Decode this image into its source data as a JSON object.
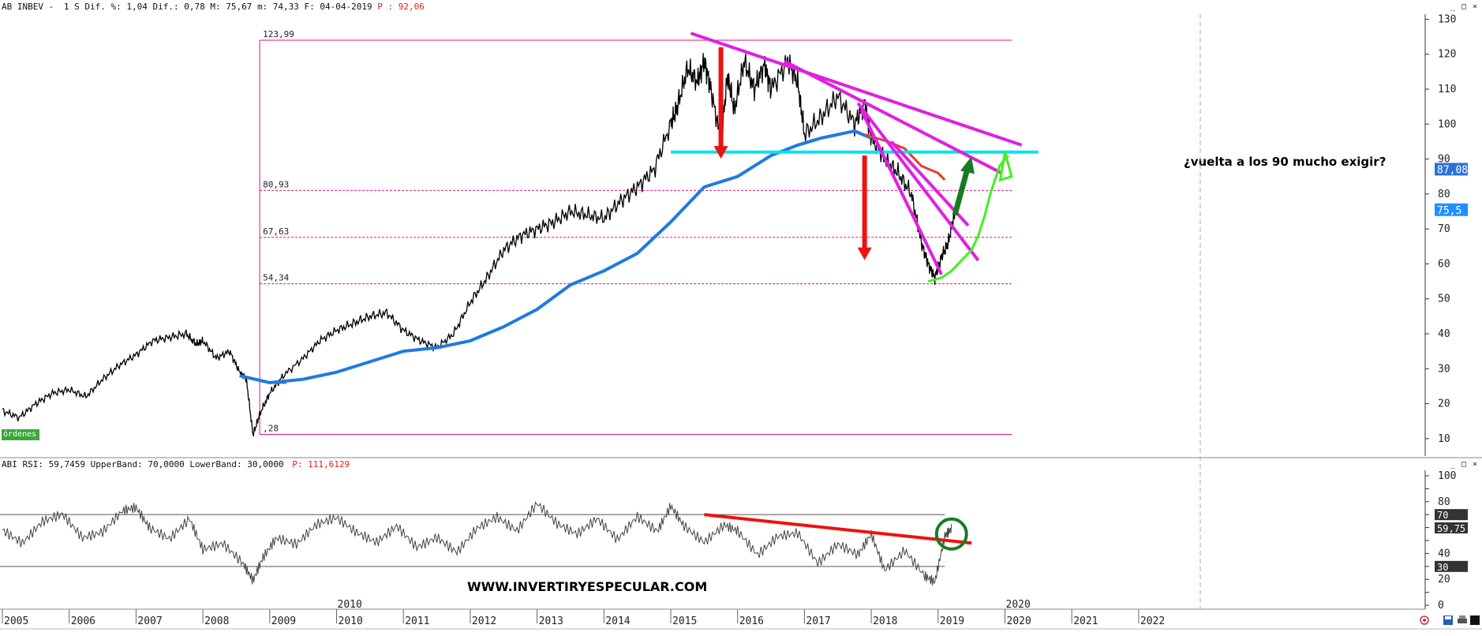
{
  "header": {
    "name": "AB INBEV -",
    "period": "1 S",
    "dif_pct": "Dif. %: 1,04",
    "dif": "Dif.: 0,78",
    "max": "M: 75,67",
    "min": "m: 74,33",
    "date": "F: 04-04-2019",
    "p_label": "P : 92,06"
  },
  "rsi_header": {
    "text": "ABI RSI: 59,7459 UpperBand: 70,0000 LowerBand: 30,0000",
    "p_label": "P: 111,6129"
  },
  "ordenes_label": "órdenes",
  "watermark": "WWW.INVERTIRYESPECULAR.COM",
  "annotation": "¿vuelta a los 90 mucho exigir?",
  "colors": {
    "price": "#000000",
    "ma_blue": "#1e7be0",
    "ma_red": "#e04030",
    "fib": "#e0157a",
    "trendline": "#e020e0",
    "support": "#00e5f0",
    "arrow_red": "#ee1111",
    "arrow_green": "#1a7a22",
    "projection": "#44ee22",
    "rsi": "#444444"
  },
  "chart_data": [
    {
      "type": "line",
      "title": "AB INBEV",
      "x_axis_labels": [
        "2005",
        "2006",
        "2007",
        "2008",
        "2009",
        "2010",
        "2011",
        "2012",
        "2013",
        "2014",
        "2015",
        "2016",
        "2017",
        "2018",
        "2019",
        "2020",
        "2021",
        "2022"
      ],
      "y_ticks": [
        10,
        20,
        30,
        40,
        50,
        60,
        70,
        80,
        90,
        100,
        110,
        120,
        130
      ],
      "ylim": [
        5,
        131
      ],
      "price_series": {
        "name": "AB INBEV",
        "x": [
          2005.0,
          2005.25,
          2005.5,
          2005.75,
          2006.0,
          2006.25,
          2006.5,
          2006.75,
          2007.0,
          2007.25,
          2007.5,
          2007.75,
          2007.9,
          2008.0,
          2008.2,
          2008.4,
          2008.55,
          2008.65,
          2008.75,
          2008.85,
          2009.0,
          2009.2,
          2009.5,
          2009.75,
          2010.0,
          2010.25,
          2010.5,
          2010.75,
          2011.0,
          2011.25,
          2011.5,
          2011.75,
          2012.0,
          2012.25,
          2012.5,
          2012.75,
          2013.0,
          2013.25,
          2013.5,
          2013.75,
          2014.0,
          2014.25,
          2014.5,
          2014.75,
          2015.0,
          2015.1,
          2015.25,
          2015.4,
          2015.5,
          2015.6,
          2015.75,
          2015.85,
          2015.95,
          2016.1,
          2016.25,
          2016.4,
          2016.5,
          2016.75,
          2016.9,
          2017.0,
          2017.25,
          2017.5,
          2017.75,
          2017.9,
          2018.0,
          2018.2,
          2018.4,
          2018.6,
          2018.75,
          2018.85,
          2018.95,
          2019.05,
          2019.15,
          2019.25
        ],
        "y": [
          18,
          16,
          20,
          23,
          24,
          22,
          27,
          31,
          34,
          38,
          39,
          40,
          37,
          38,
          33,
          35,
          29,
          27,
          11,
          17,
          23,
          28,
          33,
          38,
          41,
          43,
          45,
          46,
          41,
          38,
          36,
          40,
          49,
          56,
          64,
          68,
          70,
          72,
          75,
          74,
          73,
          78,
          82,
          87,
          100,
          105,
          116,
          112,
          118,
          110,
          95,
          114,
          104,
          118,
          110,
          117,
          110,
          118,
          112,
          97,
          102,
          108,
          100,
          106,
          96,
          90,
          86,
          80,
          66,
          60,
          56,
          62,
          66,
          75
        ]
      },
      "ma_red": {
        "x": [
          2008.55,
          2008.75,
          2009.0,
          2009.25
        ],
        "y": [
          28,
          27,
          26,
          26
        ]
      },
      "ma_blue": {
        "name": "moving average",
        "x": [
          2008.55,
          2009.0,
          2009.5,
          2010.0,
          2010.5,
          2011.0,
          2011.5,
          2012.0,
          2012.5,
          2013.0,
          2013.5,
          2014.0,
          2014.5,
          2015.0,
          2015.5,
          2016.0,
          2016.5,
          2016.9,
          2017.25,
          2017.75,
          2018.0
        ],
        "y": [
          28,
          26,
          27,
          29,
          32,
          35,
          36,
          38,
          42,
          47,
          54,
          58,
          63,
          72,
          82,
          85,
          91,
          94,
          96,
          98,
          96
        ]
      },
      "ma_red_late": {
        "x": [
          2017.9,
          2018.25,
          2018.5,
          2018.75,
          2019.0,
          2019.1
        ],
        "y": [
          97,
          95,
          93,
          88,
          86,
          84
        ]
      },
      "fib_levels": [
        {
          "label": "123,99",
          "value": 124
        },
        {
          "label": "80,93",
          "value": 81
        },
        {
          "label": "67,63",
          "value": 67.6
        },
        {
          "label": "54,34",
          "value": 54.3
        },
        {
          "label": ",28",
          "value": 11.2
        }
      ],
      "price_tags": [
        {
          "label": "87,08",
          "value": 87.1
        },
        {
          "label": "75,5",
          "value": 75.5
        }
      ],
      "support_level": 92
    },
    {
      "type": "line",
      "title": "ABI RSI",
      "y_ticks": [
        0,
        10,
        20,
        30,
        40,
        50,
        60,
        70,
        80,
        90,
        100
      ],
      "ylim": [
        -3,
        103
      ],
      "bands": {
        "upper": 70,
        "lower": 30
      },
      "series": {
        "x": [
          2005.0,
          2005.3,
          2005.6,
          2005.9,
          2006.2,
          2006.5,
          2006.8,
          2007.0,
          2007.2,
          2007.5,
          2007.8,
          2008.0,
          2008.3,
          2008.6,
          2008.75,
          2008.9,
          2009.1,
          2009.4,
          2009.7,
          2010.0,
          2010.3,
          2010.6,
          2010.9,
          2011.2,
          2011.5,
          2011.8,
          2012.1,
          2012.4,
          2012.7,
          2013.0,
          2013.3,
          2013.6,
          2013.9,
          2014.2,
          2014.5,
          2014.8,
          2015.0,
          2015.2,
          2015.5,
          2015.8,
          2016.0,
          2016.3,
          2016.6,
          2016.9,
          2017.2,
          2017.5,
          2017.8,
          2018.0,
          2018.2,
          2018.5,
          2018.8,
          2018.95,
          2019.1,
          2019.2
        ],
        "y": [
          55,
          45,
          62,
          68,
          50,
          55,
          72,
          75,
          60,
          52,
          68,
          45,
          50,
          35,
          22,
          40,
          55,
          50,
          65,
          70,
          58,
          50,
          62,
          45,
          52,
          40,
          58,
          66,
          55,
          76,
          60,
          52,
          64,
          48,
          66,
          55,
          75,
          60,
          48,
          62,
          58,
          40,
          55,
          58,
          35,
          50,
          42,
          58,
          30,
          45,
          25,
          20,
          55,
          60
        ]
      },
      "rsi_tags": [
        {
          "label": "70",
          "value": 70
        },
        {
          "label": "59,75",
          "value": 59.75
        },
        {
          "label": "30",
          "value": 30
        }
      ]
    }
  ]
}
